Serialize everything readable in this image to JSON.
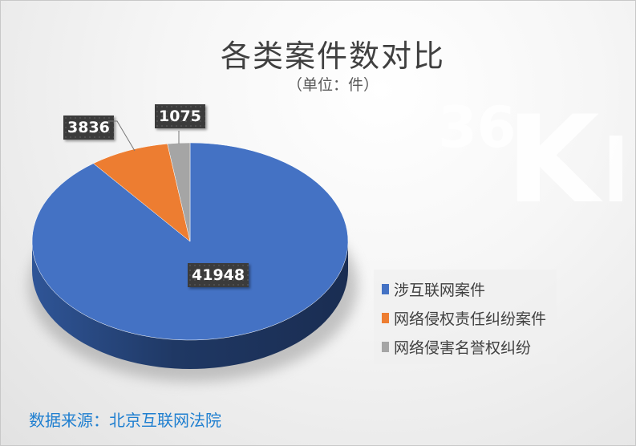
{
  "chart_data": {
    "type": "pie",
    "title": "各类案件数对比",
    "subtitle": "（单位：件）",
    "categories": [
      "涉互联网案件",
      "网络侵权责任纠纷案件",
      "网络侵害名誉权纠纷"
    ],
    "values": [
      41948,
      3836,
      1075
    ],
    "colors": [
      "#4472c4",
      "#ed7d31",
      "#a5a5a5"
    ],
    "legend_placement": "right",
    "style": "3d"
  },
  "source": "数据来源：北京互联网法院",
  "watermark": "36Kr"
}
